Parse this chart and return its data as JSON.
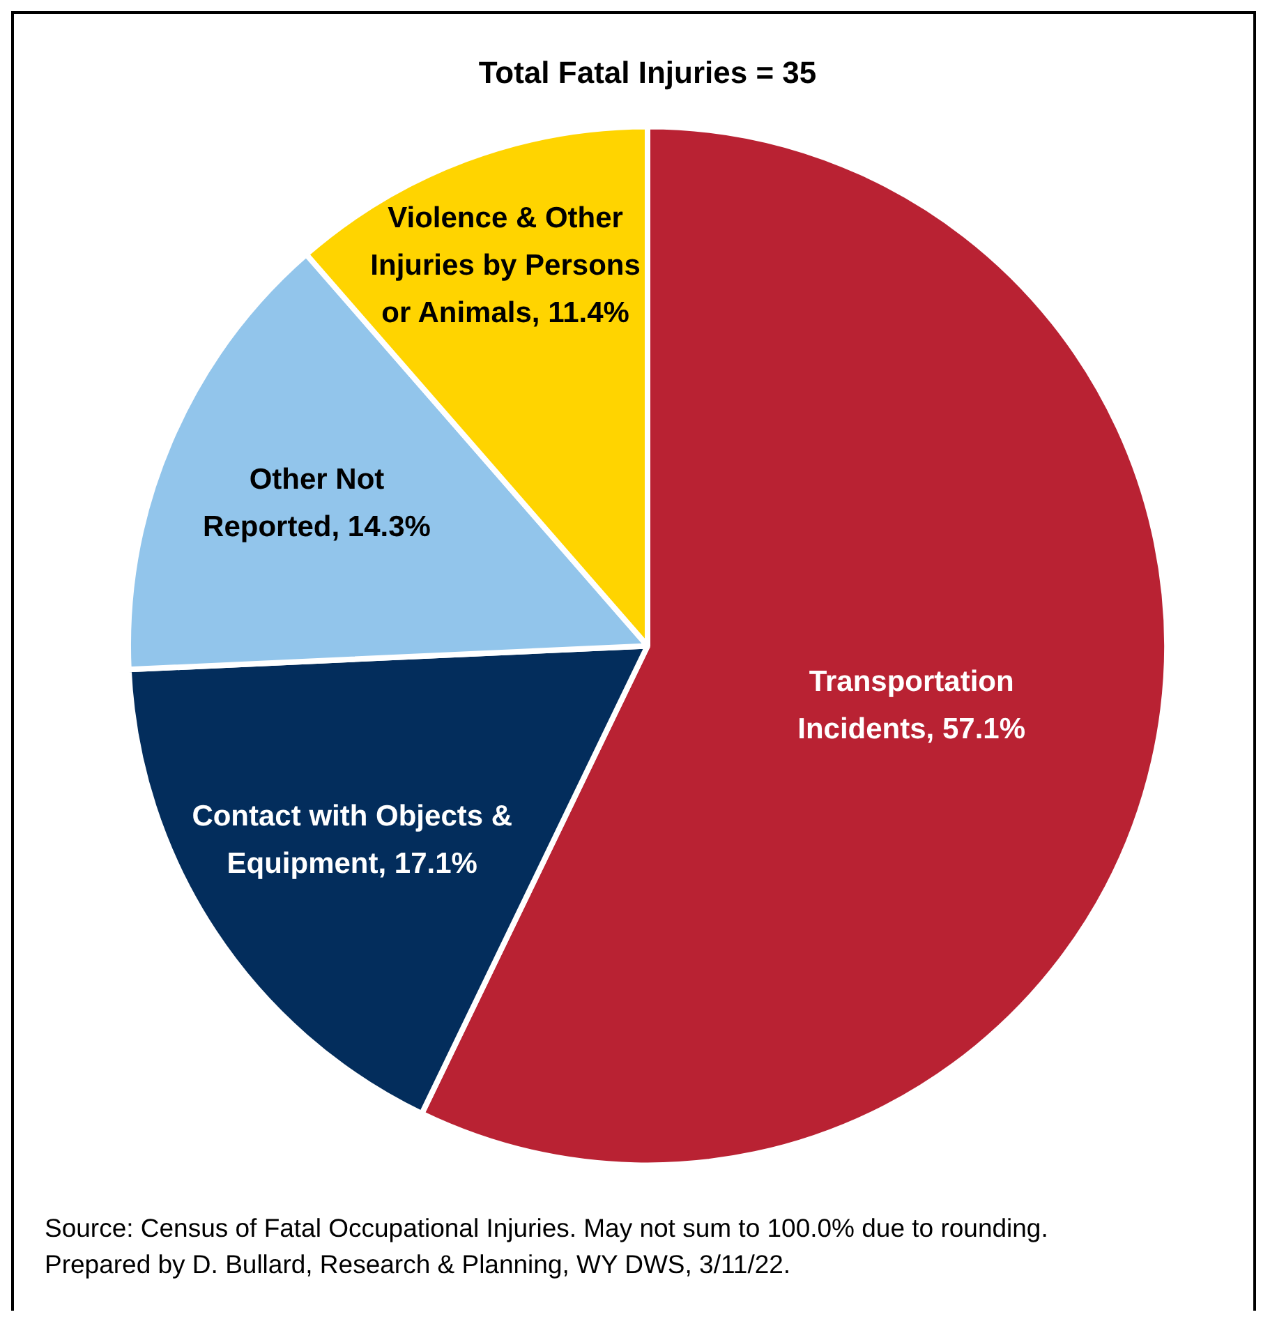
{
  "chart_data": {
    "type": "pie",
    "title": "Total Fatal Injuries = 35",
    "categories": [
      "Transportation Incidents",
      "Contact with Objects & Equipment",
      "Other Not Reported",
      "Violence & Other Injuries by Persons or Animals"
    ],
    "value_labels": [
      "57.1%",
      "17.1%",
      "14.3%",
      "11.4%"
    ],
    "values": [
      57.1,
      17.1,
      14.3,
      11.4
    ],
    "colors": [
      "#b92233",
      "#032d5c",
      "#92c5eb",
      "#ffd400"
    ],
    "legend": false,
    "annotations": [
      "Source: Census of Fatal Occupational Injuries. May not sum to 100.0% due to rounding.",
      "Prepared by D. Bullard, Research & Planning, WY DWS, 3/11/22."
    ]
  }
}
